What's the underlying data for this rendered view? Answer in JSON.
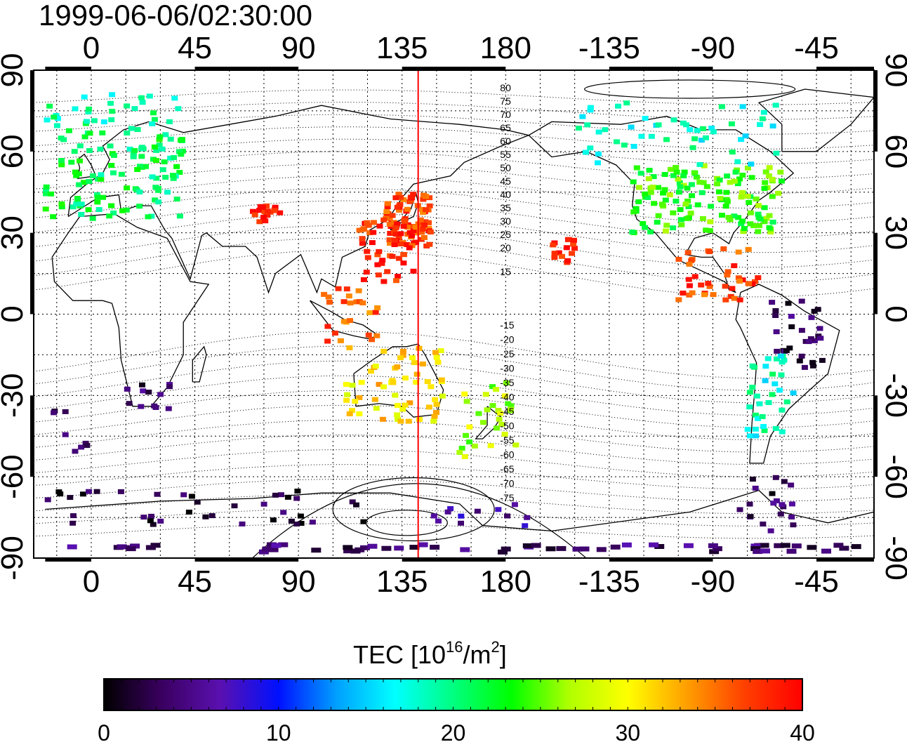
{
  "map": {
    "timestamp": "1999-06-06/02:30:00",
    "lon_ticks": [
      {
        "lon": 0,
        "label": "0"
      },
      {
        "lon": 45,
        "label": "45"
      },
      {
        "lon": 90,
        "label": "90"
      },
      {
        "lon": 135,
        "label": "135"
      },
      {
        "lon": 180,
        "label": "180"
      },
      {
        "lon": 225,
        "label": "-135"
      },
      {
        "lon": 270,
        "label": "-90"
      },
      {
        "lon": 315,
        "label": "-45"
      }
    ],
    "lat_ticks": [
      {
        "lat": 90,
        "label": "90"
      },
      {
        "lat": 60,
        "label": "60"
      },
      {
        "lat": 30,
        "label": "30"
      },
      {
        "lat": 0,
        "label": "0"
      },
      {
        "lat": -30,
        "label": "-30"
      },
      {
        "lat": -60,
        "label": "-60"
      },
      {
        "lat": -90,
        "label": "-90"
      }
    ],
    "lon_range": [
      -25,
      340
    ],
    "lat_range": [
      -90,
      90
    ],
    "grid": "dotted every 15 degrees",
    "marker_meridian_lon": 142,
    "contour_labels": {
      "north": [
        "80",
        "75",
        "70",
        "65",
        "60",
        "55",
        "50",
        "45",
        "40",
        "35",
        "30",
        "25",
        "20",
        "15"
      ],
      "south": [
        "-15",
        "-20",
        "-25",
        "-30",
        "-35",
        "-40",
        "-45",
        "-50",
        "-55",
        "-60",
        "-65",
        "-70",
        "-75"
      ]
    },
    "colorbar": {
      "title_main": "TEC  [10",
      "title_sup1": "16",
      "title_mid": "/m",
      "title_sup2": "2",
      "title_end": "]",
      "min": 0,
      "max": 40,
      "ticks": [
        "0",
        "10",
        "20",
        "30",
        "40"
      ],
      "colors": [
        "#000000",
        "#3a0060",
        "#5a10b0",
        "#0010ff",
        "#00a0ff",
        "#00ffff",
        "#00ff80",
        "#00ff00",
        "#b0ff00",
        "#ffff00",
        "#ffa000",
        "#ff4000",
        "#ff0000"
      ]
    },
    "tec_regions": [
      {
        "name": "europe",
        "lon": [
          -20,
          40
        ],
        "lat": [
          35,
          72
        ],
        "tec": 21,
        "n": 120
      },
      {
        "name": "scandinavia",
        "lon": [
          -20,
          40
        ],
        "lat": [
          70,
          82
        ],
        "tec": 19,
        "n": 25
      },
      {
        "name": "north-america",
        "lon": [
          235,
          300
        ],
        "lat": [
          30,
          55
        ],
        "tec": 24,
        "n": 140
      },
      {
        "name": "canada",
        "lon": [
          210,
          300
        ],
        "lat": [
          55,
          78
        ],
        "tec": 18,
        "n": 50
      },
      {
        "name": "japan",
        "lon": [
          128,
          148
        ],
        "lat": [
          25,
          45
        ],
        "tec": 37,
        "n": 90
      },
      {
        "name": "east-asia",
        "lon": [
          115,
          140
        ],
        "lat": [
          12,
          35
        ],
        "tec": 38,
        "n": 45
      },
      {
        "name": "india",
        "lon": [
          70,
          82
        ],
        "lat": [
          34,
          40
        ],
        "tec": 38,
        "n": 20
      },
      {
        "name": "central-america",
        "lon": [
          255,
          290
        ],
        "lat": [
          5,
          25
        ],
        "tec": 37,
        "n": 40
      },
      {
        "name": "hawaii",
        "lon": [
          200,
          210
        ],
        "lat": [
          18,
          28
        ],
        "tec": 39,
        "n": 15
      },
      {
        "name": "se-asia",
        "lon": [
          100,
          125
        ],
        "lat": [
          -10,
          10
        ],
        "tec": 36,
        "n": 25
      },
      {
        "name": "australia",
        "lon": [
          110,
          155
        ],
        "lat": [
          -40,
          -12
        ],
        "tec": 31,
        "n": 60
      },
      {
        "name": "new-zealand",
        "lon": [
          160,
          185
        ],
        "lat": [
          -55,
          -25
        ],
        "tec": 27,
        "n": 30
      },
      {
        "name": "south-america-north",
        "lon": [
          295,
          320
        ],
        "lat": [
          -20,
          5
        ],
        "tec": 3,
        "n": 30
      },
      {
        "name": "south-america-mid",
        "lon": [
          285,
          305
        ],
        "lat": [
          -45,
          -15
        ],
        "tec": 18,
        "n": 35
      },
      {
        "name": "south-africa",
        "lon": [
          15,
          35
        ],
        "lat": [
          -35,
          -25
        ],
        "tec": 3,
        "n": 12
      },
      {
        "name": "atlantic-south",
        "lon": [
          -20,
          0
        ],
        "lat": [
          -55,
          -35
        ],
        "tec": 4,
        "n": 8
      },
      {
        "name": "antarctica-coast",
        "lon": [
          -20,
          120
        ],
        "lat": [
          -78,
          -65
        ],
        "tec": 2,
        "n": 40
      },
      {
        "name": "antarctica-east",
        "lon": [
          145,
          190
        ],
        "lat": [
          -80,
          -70
        ],
        "tec": 6,
        "n": 12
      },
      {
        "name": "south-america-south",
        "lon": [
          280,
          305
        ],
        "lat": [
          -80,
          -60
        ],
        "tec": 3,
        "n": 20
      },
      {
        "name": "pole-band",
        "lon": [
          -20,
          340
        ],
        "lat": [
          -88,
          -85
        ],
        "tec": 4,
        "n": 60
      }
    ]
  }
}
